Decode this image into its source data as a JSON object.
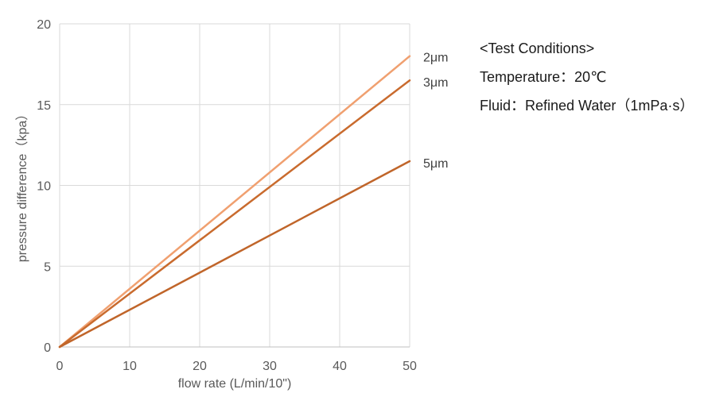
{
  "chart_data": {
    "type": "line",
    "title": "",
    "xlabel": "flow rate (L/min/10\")",
    "ylabel": "pressure difference（kpa）",
    "xlim": [
      0,
      50
    ],
    "ylim": [
      0,
      20
    ],
    "x_ticks": [
      "0",
      "10",
      "20",
      "30",
      "40",
      "50"
    ],
    "y_ticks": [
      "0",
      "5",
      "10",
      "15",
      "20"
    ],
    "grid": true,
    "series": [
      {
        "name": "2μm",
        "color": "#F0A070",
        "x": [
          0,
          50
        ],
        "y": [
          0,
          18.0
        ]
      },
      {
        "name": "3μm",
        "color": "#C96B2E",
        "x": [
          0,
          50
        ],
        "y": [
          0,
          16.5
        ]
      },
      {
        "name": "5μm",
        "color": "#C0652A",
        "x": [
          0,
          50
        ],
        "y": [
          0,
          11.5
        ]
      }
    ]
  },
  "conditions": {
    "heading": "<Test Conditions>",
    "temperature": "Temperature：20℃",
    "fluid": "Fluid：Refined Water（1mPa·s）"
  }
}
